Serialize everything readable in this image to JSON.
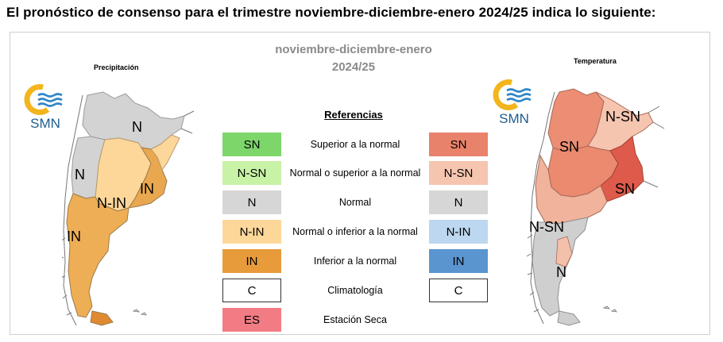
{
  "headline": "El pronóstico de consenso para el trimestre noviembre-diciembre-enero 2024/25 indica lo siguiente:",
  "period": {
    "line1": "noviembre-diciembre-enero",
    "line2": "2024/25"
  },
  "logo_text": "SMN",
  "precip_panel": {
    "title": "Precipitación",
    "labels": [
      "N",
      "N",
      "IN",
      "N-IN",
      "IN"
    ]
  },
  "temp_panel": {
    "title": "Temperatura",
    "labels": [
      "N-SN",
      "SN",
      "SN",
      "N-SN",
      "N"
    ]
  },
  "legend": {
    "title": "Referencias",
    "rows": [
      {
        "code_left": "SN",
        "color_left": "#7dd66a",
        "text": "Superior a la normal",
        "code_right": "SN",
        "color_right": "#e9826a"
      },
      {
        "code_left": "N-SN",
        "color_left": "#c8f2a6",
        "text": "Normal o superior a la normal",
        "code_right": "N-SN",
        "color_right": "#f6c5b0"
      },
      {
        "code_left": "N",
        "color_left": "#d6d6d6",
        "text": "Normal",
        "code_right": "N",
        "color_right": "#d6d6d6"
      },
      {
        "code_left": "N-IN",
        "color_left": "#fdd79a",
        "text": "Normal o inferior a la normal",
        "code_right": "N-IN",
        "color_right": "#bcd7ef"
      },
      {
        "code_left": "IN",
        "color_left": "#e89b3b",
        "text": "Inferior a la normal",
        "code_right": "IN",
        "color_right": "#5b95cf"
      },
      {
        "code_left": "C",
        "color_left": "#ffffff",
        "text": "Climatología",
        "code_right": "C",
        "color_right": "#ffffff"
      },
      {
        "code_left": "ES",
        "color_left": "#f27c83",
        "text": "Estación Seca"
      }
    ]
  }
}
